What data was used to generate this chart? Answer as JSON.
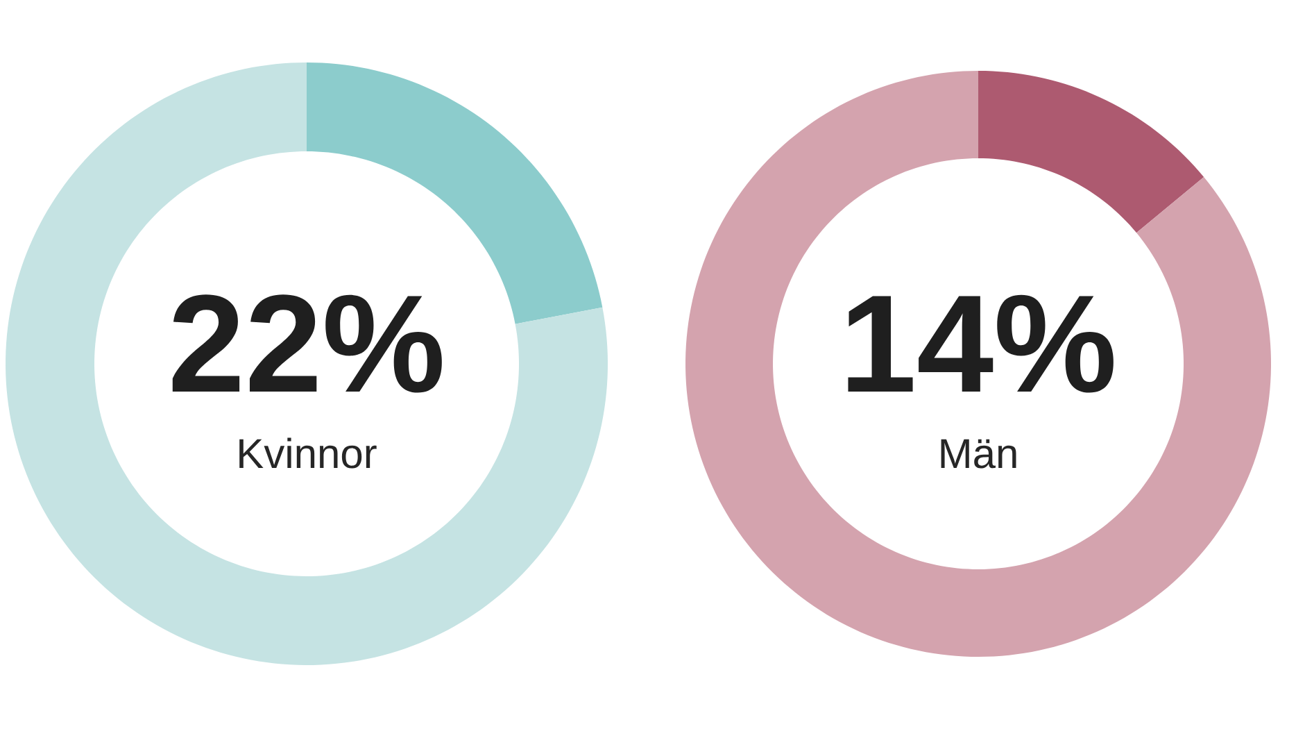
{
  "chart_data": [
    {
      "type": "donut",
      "title": "Kvinnor",
      "categories": [
        null,
        null
      ],
      "values": [
        22,
        78
      ],
      "colors": [
        "#8ccccc",
        "#c5e3e3"
      ],
      "value_labels": [
        "22%",
        null
      ]
    },
    {
      "type": "donut",
      "title": "Män",
      "categories": [
        null,
        null
      ],
      "values": [
        14,
        86
      ],
      "colors": [
        "#ad5a70",
        "#d4a3ae"
      ],
      "value_labels": [
        "14%",
        null
      ]
    }
  ]
}
